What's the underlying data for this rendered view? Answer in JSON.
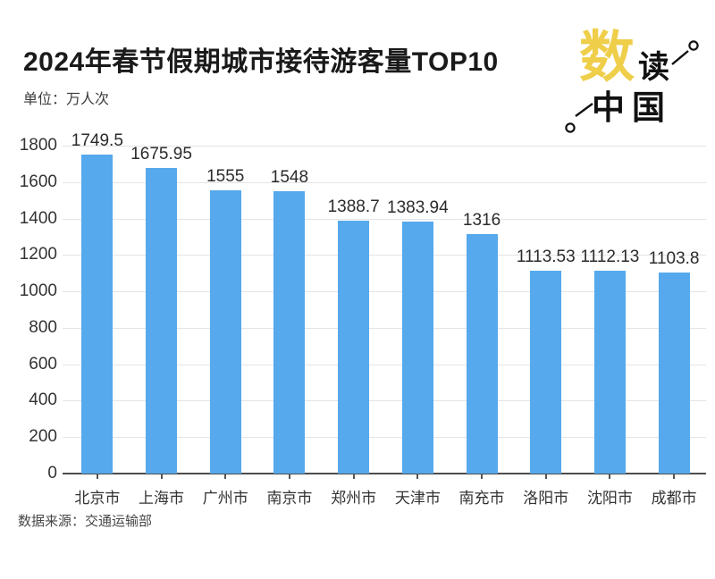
{
  "header": {
    "title": "2024年春节假期城市接待游客量TOP10",
    "unit_label": "单位：万人次"
  },
  "logo": {
    "char_1": "数",
    "char_2": "读",
    "char_3": "中国",
    "gold_color": "#EFCE4A",
    "black_color": "#111111"
  },
  "footer": {
    "source": "数据来源：交通运输部"
  },
  "chart_data": {
    "type": "bar",
    "title": "2024年春节假期城市接待游客量TOP10",
    "unit": "万人次",
    "categories": [
      "北京市",
      "上海市",
      "广州市",
      "南京市",
      "郑州市",
      "天津市",
      "南充市",
      "洛阳市",
      "沈阳市",
      "成都市"
    ],
    "values": [
      1749.5,
      1675.95,
      1555,
      1548,
      1388.7,
      1383.94,
      1316,
      1113.53,
      1112.13,
      1103.8
    ],
    "value_labels": [
      "1749.5",
      "1675.95",
      "1555",
      "1548",
      "1388.7",
      "1383.94",
      "1316",
      "1113.53",
      "1112.13",
      "1103.8"
    ],
    "ylim": [
      0,
      1800
    ],
    "ytick_step": 200,
    "ytick_labels": [
      "0",
      "200",
      "400",
      "600",
      "800",
      "1000",
      "1200",
      "1400",
      "1600",
      "1800"
    ],
    "bar_color": "#55A9EC",
    "grid": true,
    "legend": false,
    "source": "数据来源：交通运输部"
  }
}
